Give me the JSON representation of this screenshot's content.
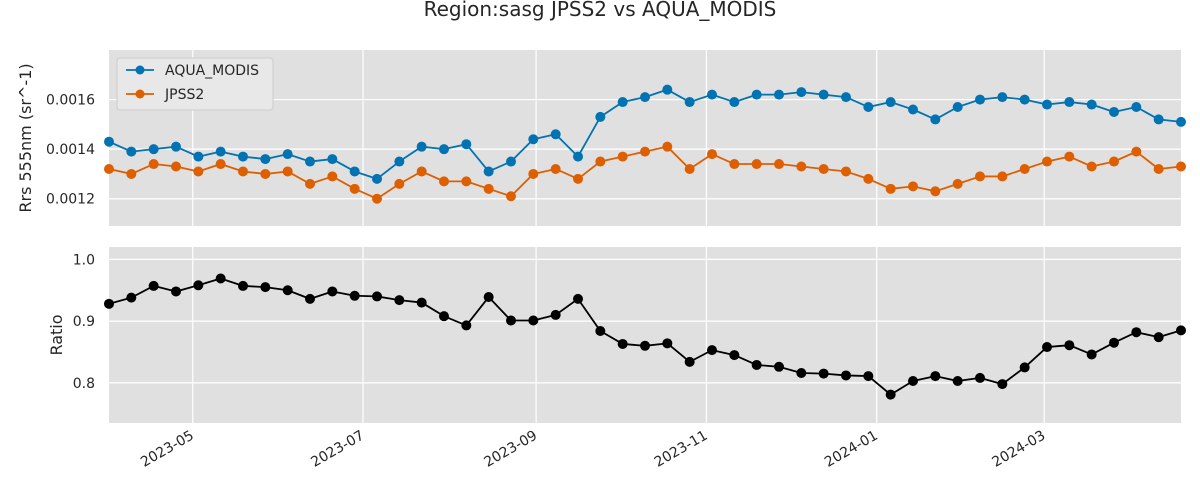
{
  "chart_data": {
    "type": "line",
    "title": "Region:sasg JPSS2 vs AQUA_MODIS",
    "x": [
      "2023-04-01",
      "2023-04-09",
      "2023-04-17",
      "2023-04-25",
      "2023-05-03",
      "2023-05-11",
      "2023-05-19",
      "2023-05-27",
      "2023-06-04",
      "2023-06-12",
      "2023-06-20",
      "2023-06-28",
      "2023-07-06",
      "2023-07-14",
      "2023-07-22",
      "2023-07-30",
      "2023-08-07",
      "2023-08-15",
      "2023-08-23",
      "2023-08-31",
      "2023-09-08",
      "2023-09-16",
      "2023-09-24",
      "2023-10-02",
      "2023-10-10",
      "2023-10-18",
      "2023-10-26",
      "2023-11-03",
      "2023-11-11",
      "2023-11-19",
      "2023-11-27",
      "2023-12-05",
      "2023-12-13",
      "2023-12-21",
      "2023-12-29",
      "2024-01-06",
      "2024-01-14",
      "2024-01-22",
      "2024-01-30",
      "2024-02-07",
      "2024-02-15",
      "2024-02-23",
      "2024-03-02",
      "2024-03-10",
      "2024-03-18",
      "2024-03-26",
      "2024-04-03",
      "2024-04-11",
      "2024-04-19"
    ],
    "xticks": [
      "2023-05",
      "2023-07",
      "2023-09",
      "2023-11",
      "2024-01",
      "2024-03"
    ],
    "xlim": [
      "2023-04-01",
      "2024-04-19"
    ],
    "panels": [
      {
        "ylabel": "Rrs 555nm (sr^-1)",
        "ylim": [
          0.00109,
          0.0018
        ],
        "yticks": [
          0.0012,
          0.0014,
          0.0016
        ],
        "ytick_labels": [
          "0.0012",
          "0.0014",
          "0.0016"
        ],
        "legend": "top-left",
        "series": [
          {
            "name": "AQUA_MODIS",
            "color": "#0173b2",
            "values": [
              0.00143,
              0.00139,
              0.0014,
              0.00141,
              0.00137,
              0.00139,
              0.00137,
              0.00136,
              0.00138,
              0.00135,
              0.00136,
              0.00131,
              0.00128,
              0.00135,
              0.00141,
              0.0014,
              0.00142,
              0.00131,
              0.00135,
              0.00144,
              0.00146,
              0.00137,
              0.00153,
              0.00159,
              0.00161,
              0.00164,
              0.00159,
              0.00162,
              0.00159,
              0.00162,
              0.00162,
              0.00163,
              0.00162,
              0.00161,
              0.00157,
              0.00159,
              0.00156,
              0.00152,
              0.00157,
              0.0016,
              0.00161,
              0.0016,
              0.00158,
              0.00159,
              0.00158,
              0.00155,
              0.00157,
              0.00152,
              0.00151
            ]
          },
          {
            "name": "JPSS2",
            "color": "#de5f00",
            "values": [
              0.00132,
              0.0013,
              0.00134,
              0.00133,
              0.00131,
              0.00134,
              0.00131,
              0.0013,
              0.00131,
              0.00126,
              0.00129,
              0.00124,
              0.0012,
              0.00126,
              0.00131,
              0.00127,
              0.00127,
              0.00124,
              0.00121,
              0.0013,
              0.00132,
              0.00128,
              0.00135,
              0.00137,
              0.00139,
              0.00141,
              0.00132,
              0.00138,
              0.00134,
              0.00134,
              0.00134,
              0.00133,
              0.00132,
              0.00131,
              0.00128,
              0.00124,
              0.00125,
              0.00123,
              0.00126,
              0.00129,
              0.00129,
              0.00132,
              0.00135,
              0.00137,
              0.00133,
              0.00135,
              0.00139,
              0.00132,
              0.00133
            ]
          }
        ]
      },
      {
        "ylabel": "Ratio",
        "ylim": [
          0.735,
          1.02
        ],
        "yticks": [
          0.8,
          0.9,
          1.0
        ],
        "ytick_labels": [
          "0.8",
          "0.9",
          "1.0"
        ],
        "series": [
          {
            "color": "#000000",
            "values": [
              0.928,
              0.938,
              0.957,
              0.948,
              0.958,
              0.969,
              0.957,
              0.955,
              0.95,
              0.936,
              0.948,
              0.941,
              0.94,
              0.934,
              0.93,
              0.908,
              0.893,
              0.939,
              0.901,
              0.901,
              0.91,
              0.936,
              0.884,
              0.863,
              0.86,
              0.864,
              0.834,
              0.853,
              0.845,
              0.829,
              0.826,
              0.816,
              0.815,
              0.812,
              0.811,
              0.781,
              0.803,
              0.811,
              0.803,
              0.808,
              0.798,
              0.825,
              0.858,
              0.861,
              0.846,
              0.865,
              0.882,
              0.874,
              0.885
            ]
          }
        ]
      }
    ],
    "grid": true,
    "background": "#e0e0e0"
  }
}
